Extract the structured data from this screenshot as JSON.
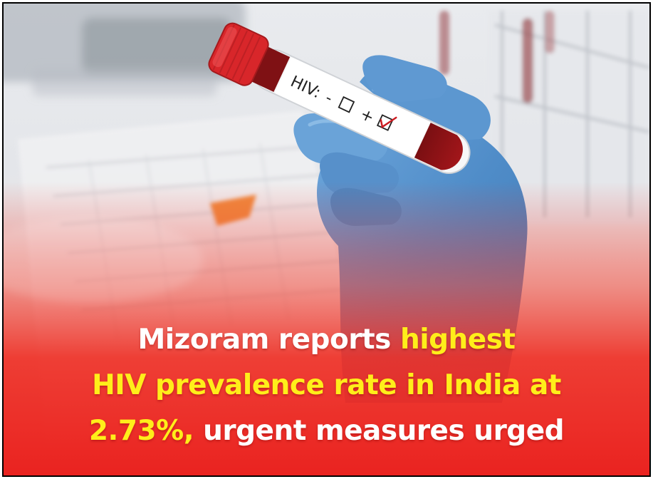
{
  "image": {
    "description_free": true,
    "tube_label": {
      "text": "HIV:",
      "minus": "-",
      "plus": "+"
    },
    "headline": {
      "line1_white": "Mizoram reports ",
      "line1_yellow": "highest",
      "line2_yellow": "HIV prevalence rate in India at",
      "line3_yellow": "2.73%,",
      "line3_white": " urgent measures urged"
    },
    "colors": {
      "highlight": "#ffee1a",
      "headline_text": "#ffffff",
      "gradient_red": "#ee2a22",
      "glove_blue": "#5b95cf",
      "cap_red": "#d8262a"
    }
  }
}
